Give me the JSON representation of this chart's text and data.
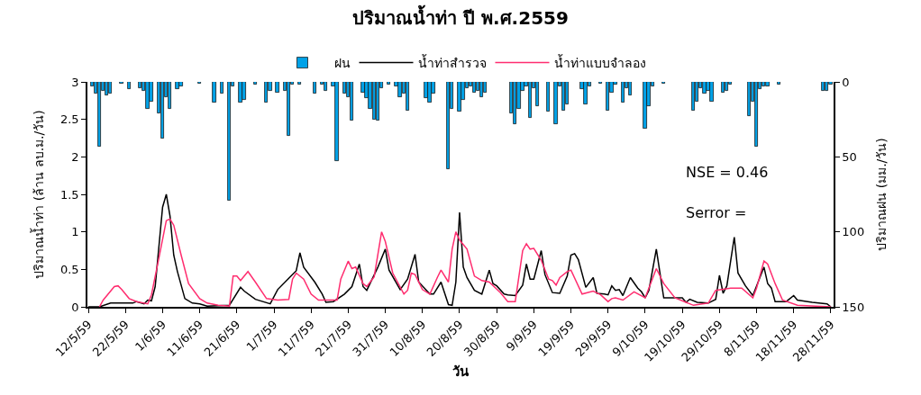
{
  "chart_data": {
    "type": "line",
    "title": "ปริมาณน้ำท่า ปี พ.ศ.2559",
    "xlabel": "วัน",
    "ylabel": "ปริมาณน้ำท่า (ล้าน ลบ.ม./วัน)",
    "y2label": "ปริมาณฝน (มม./วัน)",
    "xlim": [
      "--05-11T18:00",
      "--11-28T18:00"
    ],
    "xticks": [
      {
        "value": "--05-12",
        "label": "12/5/59"
      },
      {
        "value": "--05-22",
        "label": "22/5/59"
      },
      {
        "value": "--06-01",
        "label": "1/6/59"
      },
      {
        "value": "--06-11",
        "label": "11/6/59"
      },
      {
        "value": "--06-21",
        "label": "21/6/59"
      },
      {
        "value": "--07-01",
        "label": "1/7/59"
      },
      {
        "value": "--07-11",
        "label": "11/7/59"
      },
      {
        "value": "--07-21",
        "label": "21/7/59"
      },
      {
        "value": "--07-31",
        "label": "31/7/59"
      },
      {
        "value": "--08-10",
        "label": "10/8/59"
      },
      {
        "value": "--08-20",
        "label": "20/8/59"
      },
      {
        "value": "--08-30",
        "label": "30/8/59"
      },
      {
        "value": "--09-09",
        "label": "9/9/59"
      },
      {
        "value": "--09-19",
        "label": "19/9/59"
      },
      {
        "value": "--09-29",
        "label": "29/9/59"
      },
      {
        "value": "--10-09",
        "label": "9/10/59"
      },
      {
        "value": "--10-19",
        "label": "19/10/59"
      },
      {
        "value": "--10-29",
        "label": "29/10/59"
      },
      {
        "value": "--11-08",
        "label": "8/11/59"
      },
      {
        "value": "--11-18",
        "label": "18/11/59"
      },
      {
        "value": "--11-28",
        "label": "28/11/59"
      }
    ],
    "ylim": [
      0,
      3
    ],
    "yticks": [
      0,
      0.5,
      1,
      1.5,
      2,
      2.5,
      3
    ],
    "y2lim": [
      150,
      0
    ],
    "y2ticks": [
      0,
      50,
      100,
      150
    ],
    "legend": "top",
    "line_style": "solid",
    "annotations": [
      "NSE = 0.46",
      "Serror ="
    ],
    "series": [
      {
        "name": "ฝน",
        "type": "bar",
        "axis": "y2",
        "color": "#00a2e8",
        "x": [
          "--05-13",
          "--05-14",
          "--05-15",
          "--05-16",
          "--05-17",
          "--05-18",
          "--05-21",
          "--05-23",
          "--05-26",
          "--05-27",
          "--05-28",
          "--05-29",
          "--05-31",
          "--06-01",
          "--06-02",
          "--06-03",
          "--06-05",
          "--06-06",
          "--06-11",
          "--06-15",
          "--06-17",
          "--06-19",
          "--06-20",
          "--06-22",
          "--06-23",
          "--06-26",
          "--06-29",
          "--06-30",
          "--07-02",
          "--07-04",
          "--07-05",
          "--07-06",
          "--07-08",
          "--07-12",
          "--07-14",
          "--07-15",
          "--07-17",
          "--07-18",
          "--07-20",
          "--07-21",
          "--07-22",
          "--07-25",
          "--07-26",
          "--07-27",
          "--07-28",
          "--07-29",
          "--07-30",
          "--08-01",
          "--08-03",
          "--08-04",
          "--08-05",
          "--08-06",
          "--08-11",
          "--08-12",
          "--08-13",
          "--08-17",
          "--08-18",
          "--08-20",
          "--08-21",
          "--08-22",
          "--08-23",
          "--08-24",
          "--08-25",
          "--08-26",
          "--08-27",
          "--09-03",
          "--09-04",
          "--09-05",
          "--09-06",
          "--09-07",
          "--09-08",
          "--09-09",
          "--09-10",
          "--09-13",
          "--09-15",
          "--09-16",
          "--09-17",
          "--09-18",
          "--09-22",
          "--09-23",
          "--09-24",
          "--09-27",
          "--09-29",
          "--09-30",
          "--10-01",
          "--10-03",
          "--10-04",
          "--10-05",
          "--10-09",
          "--10-10",
          "--10-11",
          "--10-14",
          "--10-22",
          "--10-23",
          "--10-24",
          "--10-25",
          "--10-26",
          "--10-27",
          "--10-30",
          "--10-31",
          "--11-01",
          "--11-06",
          "--11-07",
          "--11-08",
          "--11-09",
          "--11-10",
          "--11-11",
          "--11-14",
          "--11-26",
          "--11-27",
          "--11-28"
        ],
        "values": [
          3,
          8,
          43,
          6,
          9,
          8,
          1,
          5,
          4,
          6,
          18,
          13,
          21,
          38,
          10,
          18,
          5,
          3,
          1,
          14,
          8,
          79,
          3,
          14,
          12,
          2,
          14,
          6,
          7,
          6,
          36,
          2,
          2,
          8,
          2,
          6,
          3,
          53,
          8,
          10,
          26,
          7,
          11,
          18,
          25,
          26,
          4,
          2,
          3,
          10,
          8,
          19,
          11,
          14,
          8,
          58,
          18,
          20,
          12,
          4,
          3,
          7,
          6,
          10,
          7,
          21,
          28,
          18,
          6,
          3,
          24,
          4,
          16,
          20,
          28,
          3,
          19,
          15,
          5,
          15,
          3,
          1,
          19,
          7,
          2,
          14,
          4,
          9,
          31,
          16,
          3,
          1,
          19,
          13,
          4,
          8,
          6,
          13,
          7,
          6,
          2,
          23,
          13,
          43,
          5,
          3,
          3,
          2,
          6,
          6,
          2
        ]
      },
      {
        "name": "น้ำท่าสำรวจ",
        "color": "#000000",
        "x": [
          "--05-12",
          "--05-15",
          "--05-18",
          "--05-24",
          "--05-25",
          "--05-27",
          "--05-28",
          "--05-29",
          "--05-30",
          "--06-01",
          "--06-02",
          "--06-03",
          "--06-04",
          "--06-05",
          "--06-07",
          "--06-09",
          "--06-11",
          "--06-13",
          "--06-19",
          "--06-22",
          "--06-23",
          "--06-26",
          "--06-30",
          "--07-02",
          "--07-05",
          "--07-07",
          "--07-08",
          "--07-09",
          "--07-12",
          "--07-14",
          "--07-15",
          "--07-17",
          "--07-20",
          "--07-22",
          "--07-24",
          "--07-25",
          "--07-26",
          "--07-29",
          "--07-31",
          "--08-01",
          "--08-04",
          "--08-06",
          "--08-08",
          "--08-09",
          "--08-12",
          "--08-13",
          "--08-15",
          "--08-17",
          "--08-18",
          "--08-19",
          "--08-20",
          "--08-21",
          "--08-22",
          "--08-24",
          "--08-26",
          "--08-28",
          "--08-29",
          "--08-30",
          "--09-01",
          "--09-02",
          "--09-04",
          "--09-06",
          "--09-07",
          "--09-08",
          "--09-09",
          "--09-11",
          "--09-12",
          "--09-14",
          "--09-16",
          "--09-18",
          "--09-19",
          "--09-20",
          "--09-21",
          "--09-23",
          "--09-25",
          "--09-26",
          "--09-28",
          "--09-29",
          "--09-30",
          "--10-01",
          "--10-02",
          "--10-03",
          "--10-05",
          "--10-07",
          "--10-08",
          "--10-09",
          "--10-10",
          "--10-12",
          "--10-14",
          "--10-19",
          "--10-20",
          "--10-21",
          "--10-23",
          "--10-26",
          "--10-28",
          "--10-29",
          "--10-30",
          "--10-31",
          "--11-02",
          "--11-03",
          "--11-05",
          "--11-07",
          "--11-10",
          "--11-11",
          "--11-12",
          "--11-13",
          "--11-16",
          "--11-18",
          "--11-19",
          "--11-23",
          "--11-27",
          "--11-28"
        ],
        "values": [
          0,
          0,
          0.05,
          0.05,
          0.07,
          0.04,
          0.09,
          0.08,
          0.27,
          1.33,
          1.5,
          1.21,
          0.69,
          0.47,
          0.11,
          0.05,
          0.04,
          0.01,
          0.02,
          0.26,
          0.21,
          0.1,
          0.04,
          0.23,
          0.38,
          0.48,
          0.72,
          0.53,
          0.33,
          0.17,
          0.06,
          0.07,
          0.17,
          0.27,
          0.57,
          0.27,
          0.22,
          0.53,
          0.77,
          0.49,
          0.23,
          0.37,
          0.7,
          0.33,
          0.17,
          0.17,
          0.33,
          0.03,
          0.02,
          0.33,
          1.26,
          0.53,
          0.39,
          0.22,
          0.17,
          0.49,
          0.31,
          0.28,
          0.17,
          0.16,
          0.15,
          0.29,
          0.57,
          0.37,
          0.37,
          0.75,
          0.43,
          0.19,
          0.18,
          0.41,
          0.69,
          0.71,
          0.63,
          0.26,
          0.39,
          0.18,
          0.17,
          0.16,
          0.28,
          0.22,
          0.23,
          0.15,
          0.39,
          0.25,
          0.2,
          0.12,
          0.22,
          0.77,
          0.12,
          0.12,
          0.06,
          0.1,
          0.06,
          0.05,
          0.1,
          0.42,
          0.18,
          0.28,
          0.93,
          0.45,
          0.28,
          0.15,
          0.53,
          0.31,
          0.25,
          0.07,
          0.07,
          0.15,
          0.09,
          0.06,
          0.04,
          0
        ]
      },
      {
        "name": "น้ำท่าแบบจำลอง",
        "color": "#ff2d6f",
        "x": [
          "--05-15",
          "--05-16",
          "--05-19",
          "--05-20",
          "--05-21",
          "--05-23",
          "--05-25",
          "--05-28",
          "--05-29",
          "--05-31",
          "--06-02",
          "--06-03",
          "--06-04",
          "--06-06",
          "--06-08",
          "--06-11",
          "--06-13",
          "--06-16",
          "--06-19",
          "--06-20",
          "--06-21",
          "--06-22",
          "--06-24",
          "--06-26",
          "--06-29",
          "--07-02",
          "--07-05",
          "--07-06",
          "--07-07",
          "--07-09",
          "--07-11",
          "--07-13",
          "--07-18",
          "--07-19",
          "--07-21",
          "--07-22",
          "--07-23",
          "--07-25",
          "--07-26",
          "--07-28",
          "--07-30",
          "--07-31",
          "--08-02",
          "--08-05",
          "--08-06",
          "--08-07",
          "--08-08",
          "--08-10",
          "--08-12",
          "--08-14",
          "--08-15",
          "--08-17",
          "--08-18",
          "--08-19",
          "--08-20",
          "--08-22",
          "--08-24",
          "--08-26",
          "--08-28",
          "--08-31",
          "--09-02",
          "--09-04",
          "--09-06",
          "--09-07",
          "--09-08",
          "--09-09",
          "--09-11",
          "--09-13",
          "--09-14",
          "--09-15",
          "--09-16",
          "--09-18",
          "--09-19",
          "--09-22",
          "--09-25",
          "--09-27",
          "--09-29",
          "--09-30",
          "--10-01",
          "--10-03",
          "--10-06",
          "--10-09",
          "--10-12",
          "--10-14",
          "--10-17",
          "--10-22",
          "--10-26",
          "--10-28",
          "--11-01",
          "--11-04",
          "--11-07",
          "--11-08",
          "--11-10",
          "--11-11",
          "--11-13",
          "--11-15",
          "--11-19",
          "--11-24",
          "--11-28"
        ],
        "values": [
          0,
          0.09,
          0.27,
          0.28,
          0.23,
          0.11,
          0.07,
          0.04,
          0.16,
          0.65,
          1.15,
          1.17,
          1.09,
          0.69,
          0.31,
          0.11,
          0.05,
          0.02,
          0.01,
          0.41,
          0.41,
          0.35,
          0.47,
          0.33,
          0.11,
          0.09,
          0.1,
          0.37,
          0.45,
          0.37,
          0.17,
          0.09,
          0.09,
          0.37,
          0.61,
          0.51,
          0.53,
          0.31,
          0.27,
          0.4,
          1.0,
          0.87,
          0.45,
          0.17,
          0.22,
          0.45,
          0.43,
          0.23,
          0.17,
          0.39,
          0.49,
          0.33,
          0.77,
          1.0,
          0.89,
          0.77,
          0.41,
          0.35,
          0.33,
          0.19,
          0.07,
          0.07,
          0.75,
          0.84,
          0.77,
          0.78,
          0.62,
          0.37,
          0.35,
          0.29,
          0.39,
          0.47,
          0.49,
          0.17,
          0.21,
          0.16,
          0.07,
          0.11,
          0.12,
          0.09,
          0.2,
          0.12,
          0.51,
          0.31,
          0.12,
          0.02,
          0.05,
          0.22,
          0.25,
          0.25,
          0.12,
          0.25,
          0.61,
          0.57,
          0.31,
          0.09,
          0.02,
          0.01,
          0
        ]
      }
    ]
  }
}
